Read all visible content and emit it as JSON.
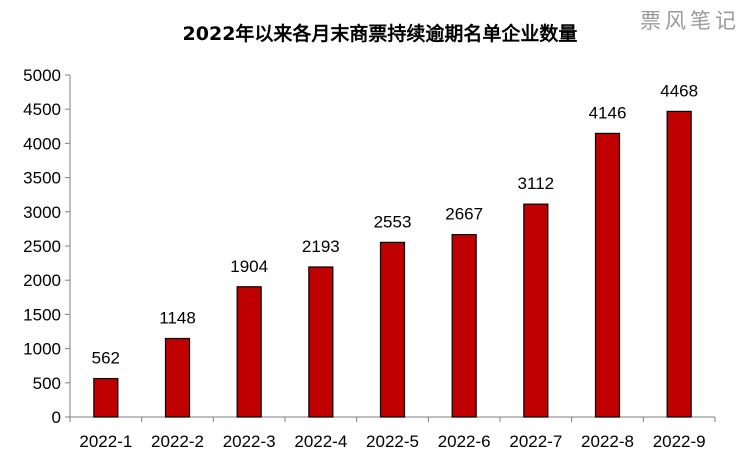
{
  "watermark": "票风笔记",
  "colors": {
    "bar_fill": "#C00000",
    "bar_edge": "#000000",
    "axis": "#7F7F7F"
  },
  "chart_data": {
    "type": "bar",
    "title": "2022年以来各月末商票持续逾期名单企业数量",
    "xlabel": "",
    "ylabel": "",
    "categories": [
      "2022-1",
      "2022-2",
      "2022-3",
      "2022-4",
      "2022-5",
      "2022-6",
      "2022-7",
      "2022-8",
      "2022-9"
    ],
    "values": [
      562,
      1148,
      1904,
      2193,
      2553,
      2667,
      3112,
      4146,
      4468
    ],
    "ylim": [
      0,
      5000
    ],
    "yticks": [
      0,
      500,
      1000,
      1500,
      2000,
      2500,
      3000,
      3500,
      4000,
      4500,
      5000
    ],
    "grid": false,
    "legend": "none",
    "data_labels": true
  }
}
